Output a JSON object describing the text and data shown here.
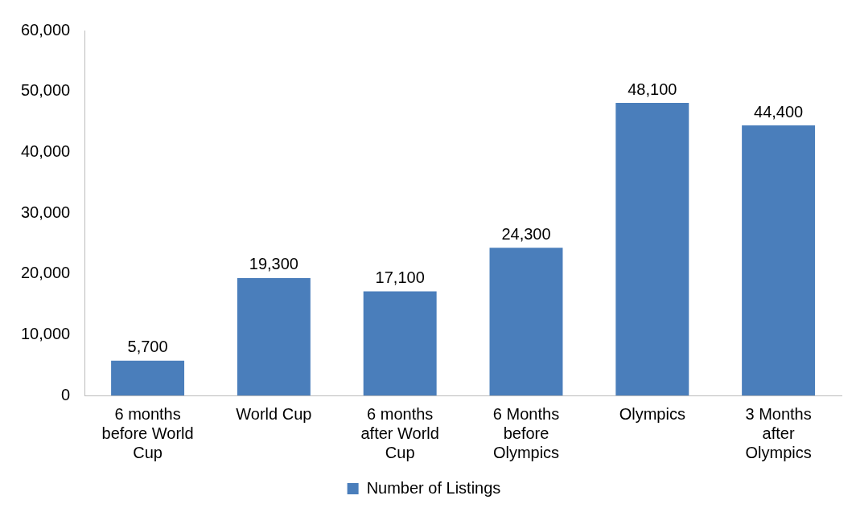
{
  "chart_data": {
    "type": "bar",
    "categories": [
      "6 months before World Cup",
      "World Cup",
      "6 months after World Cup",
      "6 Months before Olympics",
      "Olympics",
      "3 Months after Olympics"
    ],
    "series": [
      {
        "name": "Number of Listings",
        "color": "#4a7ebb",
        "values": [
          5700,
          19300,
          17100,
          24300,
          48100,
          44400
        ],
        "value_labels": [
          "5,700",
          "19,300",
          "17,100",
          "24,300",
          "48,100",
          "44,400"
        ]
      }
    ],
    "ylim": [
      0,
      60000
    ],
    "yticks": [
      0,
      {
        "value": 10000,
        "label": "10,000"
      },
      {
        "value": 20000,
        "label": "20,000"
      },
      {
        "value": 30000,
        "label": "30,000"
      },
      {
        "value": 40000,
        "label": "40,000"
      },
      {
        "value": 50000,
        "label": "50,000"
      },
      {
        "value": 60000,
        "label": "60,000"
      }
    ],
    "grid": false,
    "legend": "bottom"
  }
}
